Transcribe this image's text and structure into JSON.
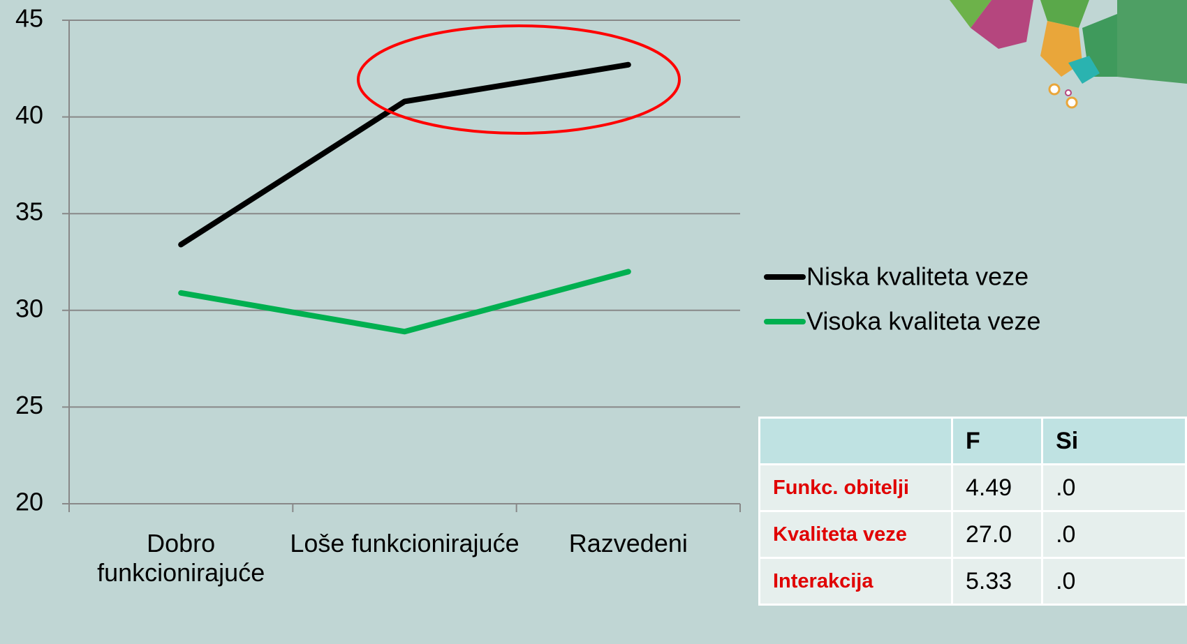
{
  "chart_data": {
    "type": "line",
    "categories": [
      "Dobro funkcionirajuće",
      "Loše funkcionirajuće",
      "Razvedeni"
    ],
    "series": [
      {
        "name": "Niska kvaliteta veze",
        "color": "#000000",
        "values": [
          33.4,
          40.8,
          42.7
        ]
      },
      {
        "name": "Visoka kvaliteta veze",
        "color": "#00b050",
        "values": [
          30.9,
          28.9,
          32.0
        ]
      }
    ],
    "ylim": [
      20,
      45
    ],
    "yticks": [
      20,
      25,
      30,
      35,
      40,
      45
    ],
    "grid": true,
    "legend": "right"
  },
  "table": {
    "header": [
      null,
      "F",
      "Si"
    ],
    "rows": [
      [
        "Funkc. obitelji",
        "4.49",
        ".0"
      ],
      [
        "Kvaliteta veze",
        "27.0",
        ".0"
      ],
      [
        "Interakcija",
        "5.33",
        ".0"
      ]
    ]
  }
}
